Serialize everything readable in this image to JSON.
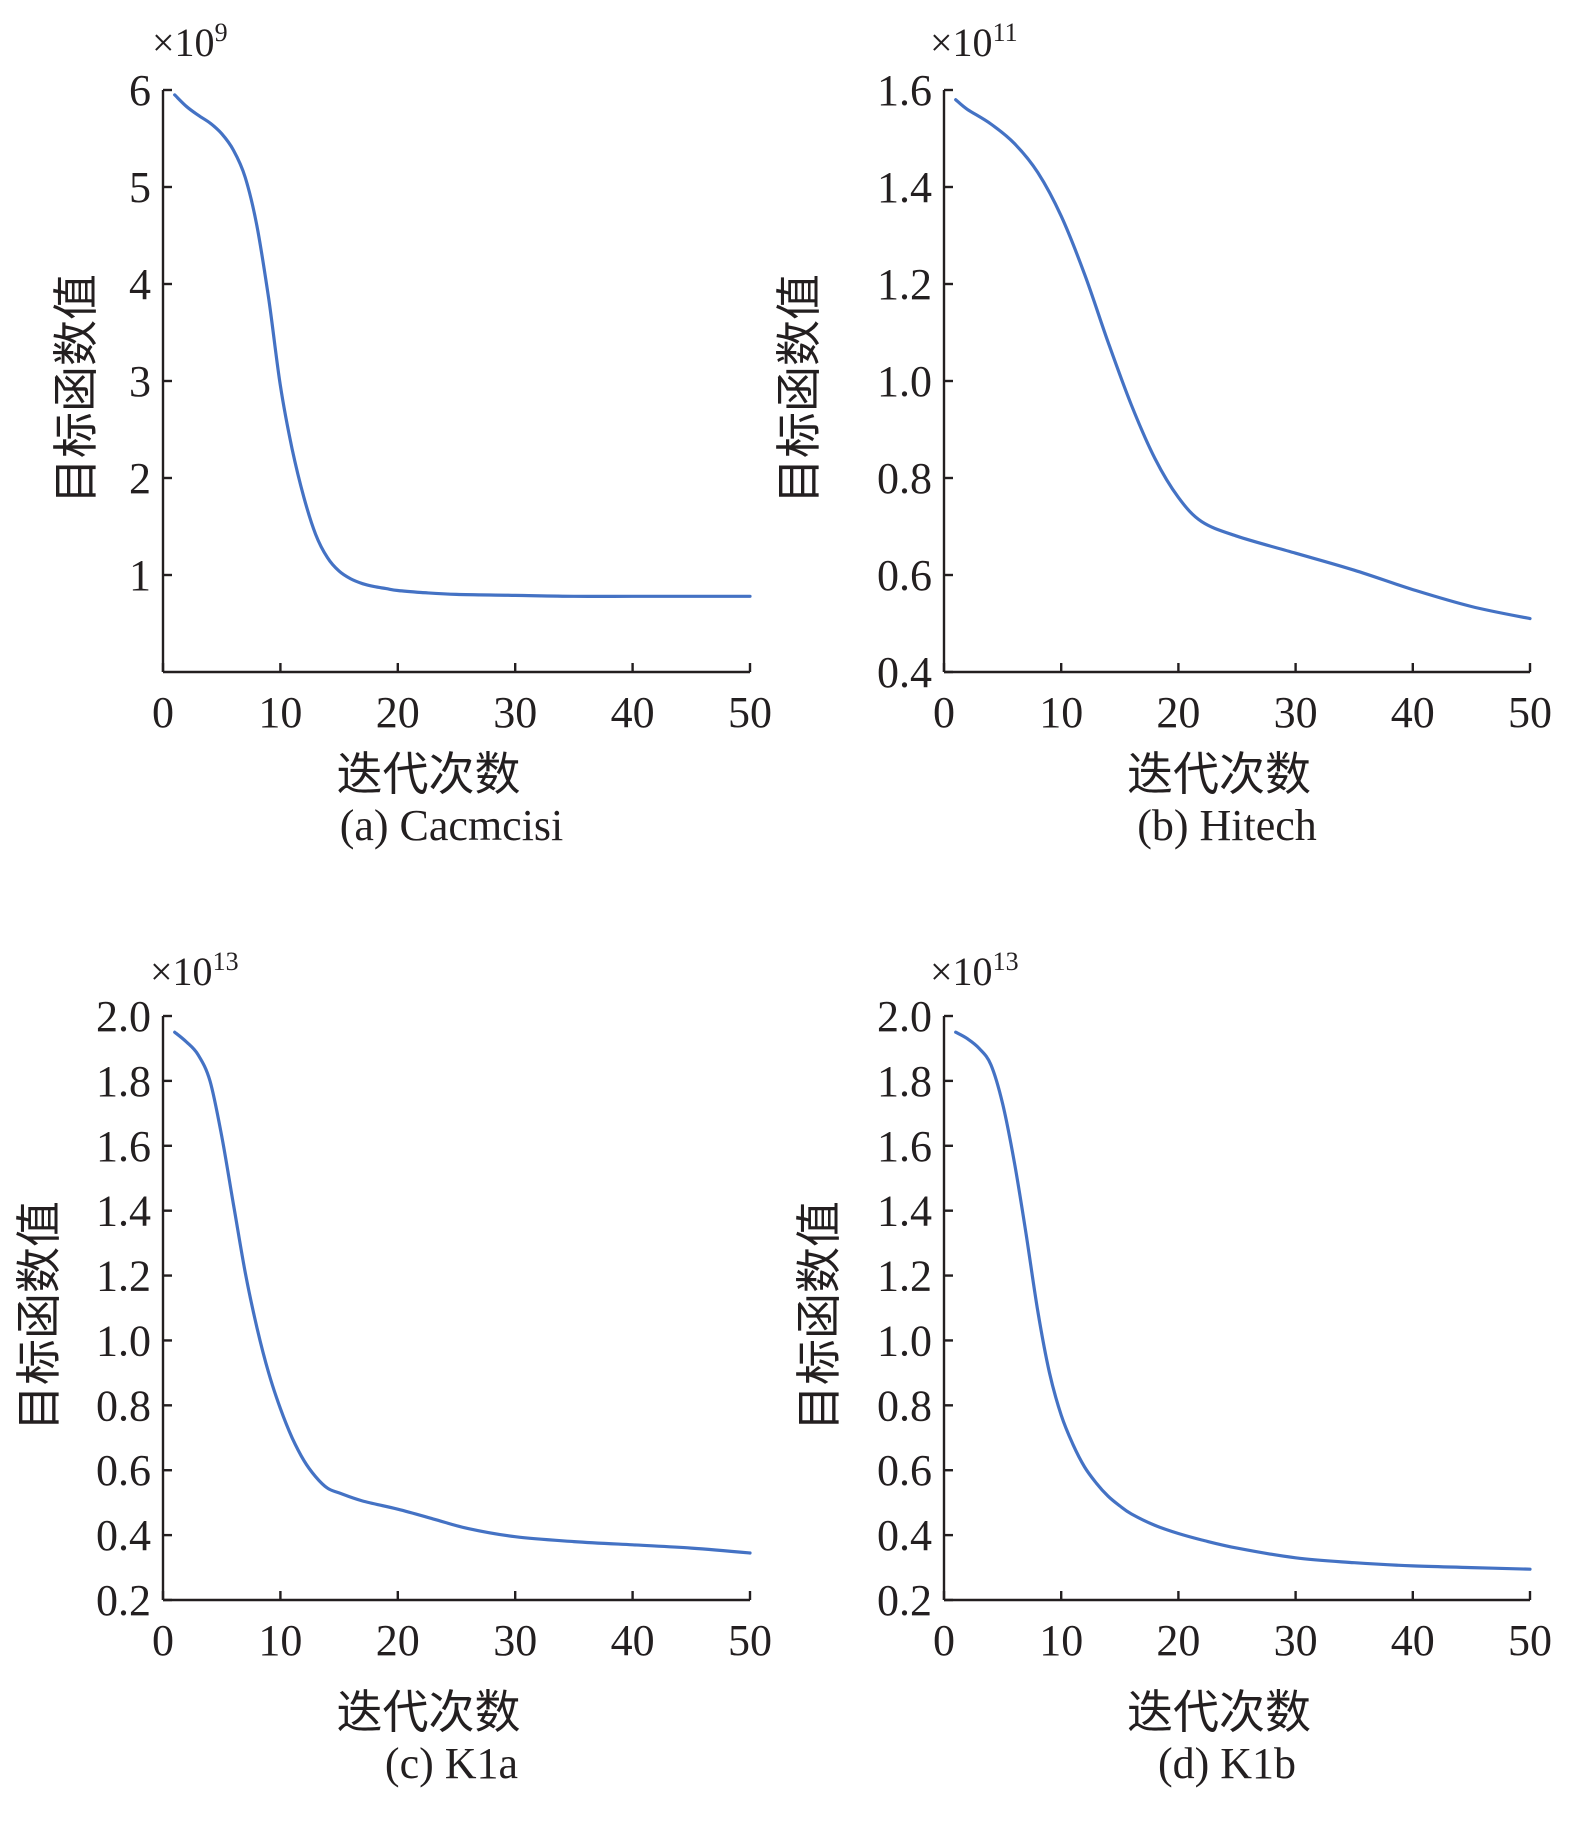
{
  "figure": {
    "line_color": "#4472c4",
    "axis_color": "#231f20",
    "background": "#ffffff"
  },
  "chart_data": [
    {
      "type": "line",
      "caption": "(a) Cacmcisi",
      "xlabel": "迭代次数",
      "ylabel": "目标函数值",
      "y_multiplier": "×10",
      "y_exponent": "9",
      "xlim": [
        0,
        50
      ],
      "ylim": [
        0,
        6
      ],
      "xticks": [
        0,
        10,
        20,
        30,
        40,
        50
      ],
      "xtick_labels": [
        "0",
        "10",
        "20",
        "30",
        "40",
        "50"
      ],
      "yticks": [
        1,
        2,
        3,
        4,
        5,
        6
      ],
      "ytick_labels": [
        "1",
        "2",
        "3",
        "4",
        "5",
        "6"
      ],
      "series": [
        {
          "name": "目标函数值",
          "x": [
            1,
            2,
            3,
            4,
            5,
            6,
            7,
            8,
            9,
            10,
            11,
            12,
            13,
            14,
            15,
            16,
            17,
            18,
            19,
            20,
            22,
            25,
            30,
            35,
            40,
            45,
            50
          ],
          "values": [
            5.95,
            5.83,
            5.74,
            5.66,
            5.55,
            5.38,
            5.1,
            4.6,
            3.85,
            2.95,
            2.3,
            1.8,
            1.42,
            1.18,
            1.04,
            0.96,
            0.91,
            0.88,
            0.86,
            0.84,
            0.82,
            0.8,
            0.79,
            0.78,
            0.78,
            0.78,
            0.78
          ]
        }
      ]
    },
    {
      "type": "line",
      "caption": "(b) Hitech",
      "xlabel": "迭代次数",
      "ylabel": "目标函数值",
      "y_multiplier": "×10",
      "y_exponent": "11",
      "xlim": [
        0,
        50
      ],
      "ylim": [
        0.4,
        1.6
      ],
      "xticks": [
        0,
        10,
        20,
        30,
        40,
        50
      ],
      "xtick_labels": [
        "0",
        "10",
        "20",
        "30",
        "40",
        "50"
      ],
      "yticks": [
        0.4,
        0.6,
        0.8,
        1.0,
        1.2,
        1.4,
        1.6
      ],
      "ytick_labels": [
        "0.4",
        "0.6",
        "0.8",
        "1.0",
        "1.2",
        "1.4",
        "1.6"
      ],
      "series": [
        {
          "name": "目标函数值",
          "x": [
            1,
            2,
            4,
            6,
            8,
            10,
            12,
            14,
            16,
            18,
            20,
            22,
            25,
            30,
            35,
            40,
            45,
            50
          ],
          "values": [
            1.58,
            1.56,
            1.53,
            1.49,
            1.43,
            1.34,
            1.22,
            1.08,
            0.95,
            0.84,
            0.76,
            0.71,
            0.68,
            0.645,
            0.61,
            0.57,
            0.535,
            0.51
          ]
        }
      ]
    },
    {
      "type": "line",
      "caption": "(c) K1a",
      "xlabel": "迭代次数",
      "ylabel": "目标函数值",
      "y_multiplier": "×10",
      "y_exponent": "13",
      "xlim": [
        0,
        50
      ],
      "ylim": [
        0.2,
        2.0
      ],
      "xticks": [
        0,
        10,
        20,
        30,
        40,
        50
      ],
      "xtick_labels": [
        "0",
        "10",
        "20",
        "30",
        "40",
        "50"
      ],
      "yticks": [
        0.2,
        0.4,
        0.6,
        0.8,
        1.0,
        1.2,
        1.4,
        1.6,
        1.8,
        2.0
      ],
      "ytick_labels": [
        "0.2",
        "0.4",
        "0.6",
        "0.8",
        "1.0",
        "1.2",
        "1.4",
        "1.6",
        "1.8",
        "2.0"
      ],
      "series": [
        {
          "name": "目标函数值",
          "x": [
            1,
            2,
            3,
            4,
            5,
            6,
            7,
            8,
            9,
            10,
            11,
            12,
            13,
            14,
            15,
            17,
            20,
            23,
            26,
            30,
            35,
            40,
            45,
            50
          ],
          "values": [
            1.95,
            1.92,
            1.88,
            1.8,
            1.63,
            1.42,
            1.21,
            1.04,
            0.9,
            0.79,
            0.7,
            0.63,
            0.58,
            0.545,
            0.53,
            0.505,
            0.48,
            0.45,
            0.42,
            0.395,
            0.38,
            0.37,
            0.36,
            0.345
          ]
        }
      ]
    },
    {
      "type": "line",
      "caption": "(d) K1b",
      "xlabel": "迭代次数",
      "ylabel": "目标函数值",
      "y_multiplier": "×10",
      "y_exponent": "13",
      "xlim": [
        0,
        50
      ],
      "ylim": [
        0.2,
        2.0
      ],
      "xticks": [
        0,
        10,
        20,
        30,
        40,
        50
      ],
      "xtick_labels": [
        "0",
        "10",
        "20",
        "30",
        "40",
        "50"
      ],
      "yticks": [
        0.2,
        0.4,
        0.6,
        0.8,
        1.0,
        1.2,
        1.4,
        1.6,
        1.8,
        2.0
      ],
      "ytick_labels": [
        "0.2",
        "0.4",
        "0.6",
        "0.8",
        "1.0",
        "1.2",
        "1.4",
        "1.6",
        "1.8",
        "2.0"
      ],
      "series": [
        {
          "name": "目标函数值",
          "x": [
            1,
            2,
            3,
            4,
            5,
            6,
            7,
            8,
            9,
            10,
            11,
            12,
            13,
            14,
            15,
            16,
            18,
            20,
            22,
            25,
            30,
            35,
            40,
            45,
            50
          ],
          "values": [
            1.95,
            1.93,
            1.9,
            1.85,
            1.73,
            1.55,
            1.33,
            1.09,
            0.9,
            0.77,
            0.68,
            0.61,
            0.56,
            0.52,
            0.49,
            0.465,
            0.43,
            0.405,
            0.385,
            0.36,
            0.33,
            0.315,
            0.305,
            0.3,
            0.295
          ]
        }
      ]
    }
  ]
}
